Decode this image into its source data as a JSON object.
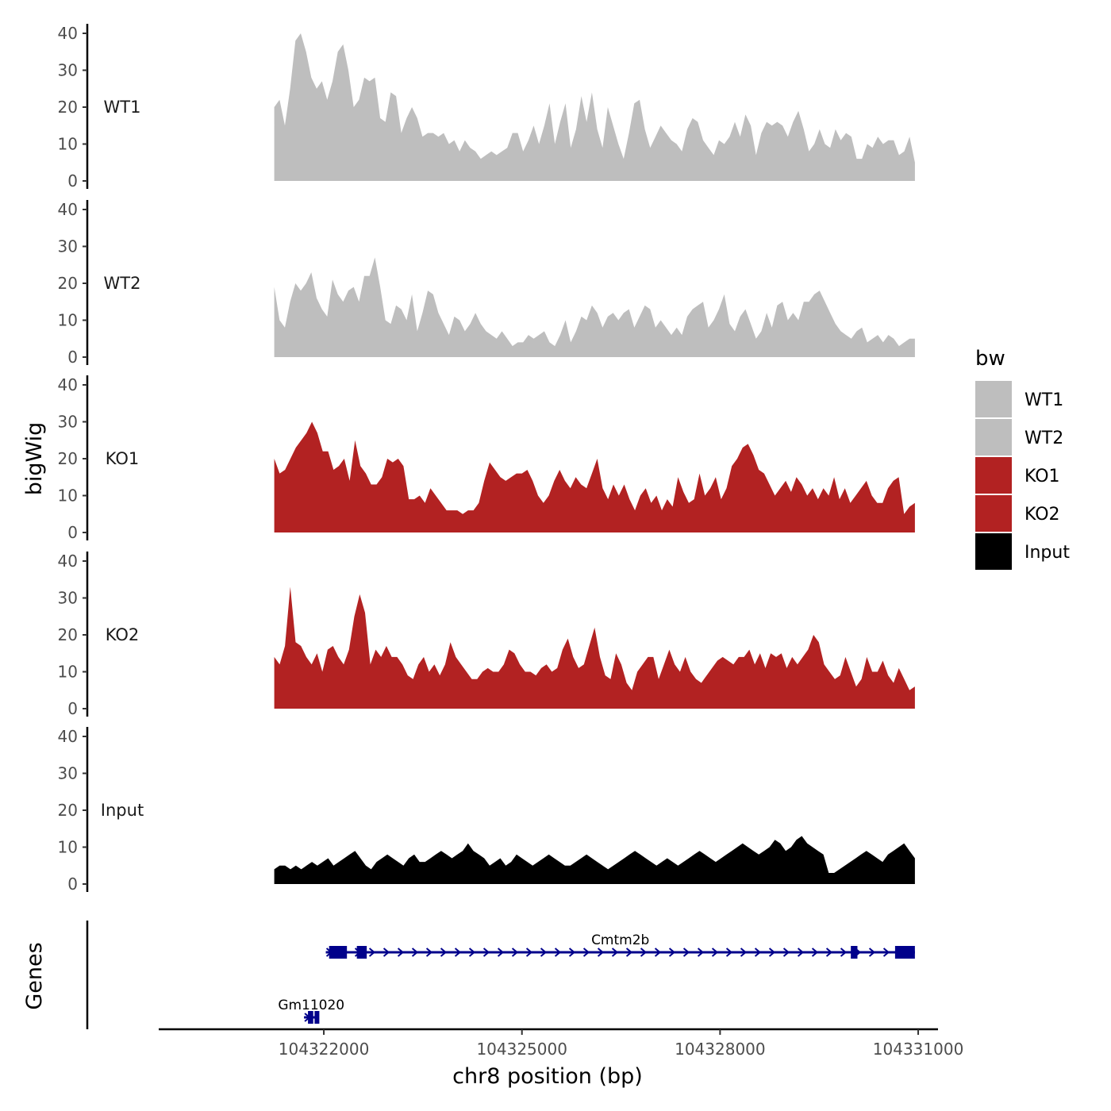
{
  "chart_data": {
    "type": "area",
    "ylabel": "bigWig",
    "xlabel": "chr8 position (bp)",
    "genes_label": "Genes",
    "ylim": [
      0,
      40
    ],
    "yticks": [
      0,
      10,
      20,
      30,
      40
    ],
    "xlim": [
      104319500,
      104331300
    ],
    "x_start": 104321250,
    "x_end": 104330950,
    "xticks": [
      {
        "value": 104322000,
        "label": "104322000"
      },
      {
        "value": 104325000,
        "label": "104325000"
      },
      {
        "value": 104328000,
        "label": "104328000"
      },
      {
        "value": 104331000,
        "label": "104331000"
      }
    ],
    "legend": {
      "title": "bw",
      "entries": [
        {
          "label": "WT1",
          "color": "#bebebe"
        },
        {
          "label": "WT2",
          "color": "#bebebe"
        },
        {
          "label": "KO1",
          "color": "#b22222"
        },
        {
          "label": "KO2",
          "color": "#b22222"
        },
        {
          "label": "Input",
          "color": "#000000"
        }
      ]
    },
    "tracks": [
      {
        "name": "WT1",
        "color": "#bebebe",
        "values": [
          20,
          22,
          15,
          25,
          38,
          40,
          35,
          28,
          25,
          27,
          22,
          27,
          35,
          37,
          30,
          20,
          22,
          28,
          27,
          28,
          17,
          16,
          24,
          23,
          13,
          17,
          20,
          17,
          12,
          13,
          13,
          12,
          13,
          10,
          11,
          8,
          11,
          9,
          8,
          6,
          7,
          8,
          7,
          8,
          9,
          13,
          13,
          8,
          11,
          15,
          10,
          15,
          21,
          10,
          16,
          21,
          9,
          14,
          23,
          16,
          24,
          14,
          9,
          20,
          15,
          10,
          6,
          13,
          21,
          22,
          14,
          9,
          12,
          15,
          13,
          11,
          10,
          8,
          14,
          17,
          16,
          11,
          9,
          7,
          11,
          10,
          12,
          16,
          12,
          18,
          15,
          7,
          13,
          16,
          15,
          16,
          15,
          12,
          16,
          19,
          14,
          8,
          10,
          14,
          10,
          9,
          14,
          11,
          13,
          12,
          6,
          6,
          10,
          9,
          12,
          10,
          11,
          11,
          7,
          8,
          12,
          5
        ]
      },
      {
        "name": "WT2",
        "color": "#bebebe",
        "values": [
          19,
          10,
          8,
          15,
          20,
          18,
          20,
          23,
          16,
          13,
          11,
          21,
          17,
          15,
          18,
          19,
          15,
          22,
          22,
          27,
          19,
          10,
          9,
          14,
          13,
          10,
          17,
          7,
          12,
          18,
          17,
          12,
          9,
          6,
          11,
          10,
          7,
          9,
          12,
          9,
          7,
          6,
          5,
          7,
          5,
          3,
          4,
          4,
          6,
          5,
          6,
          7,
          4,
          3,
          6,
          10,
          4,
          7,
          11,
          10,
          14,
          12,
          8,
          11,
          12,
          10,
          12,
          13,
          8,
          11,
          14,
          13,
          8,
          10,
          8,
          6,
          8,
          6,
          11,
          13,
          14,
          15,
          8,
          10,
          13,
          17,
          9,
          7,
          11,
          13,
          9,
          5,
          7,
          12,
          8,
          14,
          15,
          10,
          12,
          10,
          15,
          15,
          17,
          18,
          15,
          12,
          9,
          7,
          6,
          5,
          7,
          8,
          4,
          5,
          6,
          4,
          6,
          5,
          3,
          4,
          5,
          5
        ]
      },
      {
        "name": "KO1",
        "color": "#b22222",
        "values": [
          20,
          16,
          17,
          20,
          23,
          25,
          27,
          30,
          27,
          22,
          22,
          17,
          18,
          20,
          14,
          25,
          18,
          16,
          13,
          13,
          15,
          20,
          19,
          20,
          18,
          9,
          9,
          10,
          8,
          12,
          10,
          8,
          6,
          6,
          6,
          5,
          6,
          6,
          8,
          14,
          19,
          17,
          15,
          14,
          15,
          16,
          16,
          17,
          14,
          10,
          8,
          10,
          14,
          17,
          14,
          12,
          15,
          13,
          12,
          16,
          20,
          12,
          9,
          13,
          10,
          13,
          9,
          6,
          10,
          12,
          8,
          10,
          6,
          9,
          7,
          15,
          11,
          8,
          9,
          16,
          10,
          12,
          15,
          9,
          12,
          18,
          20,
          23,
          24,
          21,
          17,
          16,
          13,
          10,
          12,
          14,
          11,
          15,
          13,
          10,
          12,
          9,
          12,
          10,
          15,
          9,
          12,
          8,
          10,
          12,
          14,
          10,
          8,
          8,
          12,
          14,
          15,
          5,
          7,
          8
        ]
      },
      {
        "name": "KO2",
        "color": "#b22222",
        "values": [
          14,
          12,
          17,
          33,
          18,
          17,
          14,
          12,
          15,
          10,
          16,
          17,
          14,
          12,
          16,
          25,
          31,
          26,
          12,
          16,
          14,
          17,
          14,
          14,
          12,
          9,
          8,
          12,
          14,
          10,
          12,
          9,
          12,
          18,
          14,
          12,
          10,
          8,
          8,
          10,
          11,
          10,
          10,
          12,
          16,
          15,
          12,
          10,
          10,
          9,
          11,
          12,
          10,
          11,
          16,
          19,
          14,
          11,
          12,
          17,
          22,
          14,
          9,
          8,
          15,
          12,
          7,
          5,
          10,
          12,
          14,
          14,
          8,
          12,
          16,
          12,
          10,
          14,
          10,
          8,
          7,
          9,
          11,
          13,
          14,
          13,
          12,
          14,
          14,
          16,
          12,
          15,
          11,
          15,
          14,
          15,
          11,
          14,
          12,
          14,
          16,
          20,
          18,
          12,
          10,
          8,
          9,
          14,
          10,
          6,
          8,
          14,
          10,
          10,
          13,
          9,
          7,
          11,
          8,
          5,
          6
        ]
      },
      {
        "name": "Input",
        "color": "#000000",
        "values": [
          4,
          5,
          5,
          4,
          5,
          4,
          5,
          6,
          5,
          6,
          7,
          5,
          6,
          7,
          8,
          9,
          7,
          5,
          4,
          6,
          7,
          8,
          7,
          6,
          5,
          7,
          8,
          6,
          6,
          7,
          8,
          9,
          8,
          7,
          8,
          9,
          11,
          9,
          8,
          7,
          5,
          6,
          7,
          5,
          6,
          8,
          7,
          6,
          5,
          6,
          7,
          8,
          7,
          6,
          5,
          5,
          6,
          7,
          8,
          7,
          6,
          5,
          4,
          5,
          6,
          7,
          8,
          9,
          8,
          7,
          6,
          5,
          6,
          7,
          6,
          5,
          6,
          7,
          8,
          9,
          8,
          7,
          6,
          7,
          8,
          9,
          10,
          11,
          10,
          9,
          8,
          9,
          10,
          12,
          11,
          9,
          10,
          12,
          13,
          11,
          10,
          9,
          8,
          3,
          3,
          4,
          5,
          6,
          7,
          8,
          9,
          8,
          7,
          6,
          8,
          9,
          10,
          11,
          9,
          7
        ]
      }
    ],
    "genes": [
      {
        "name": "Gm11020",
        "start": 104321700,
        "end": 104321920,
        "strand": "+",
        "exons": [
          [
            104321760,
            104321840
          ],
          [
            104321860,
            104321900
          ]
        ]
      },
      {
        "name": "Cmtm2b",
        "start": 104322030,
        "end": 104330950,
        "strand": "+",
        "exons": [
          [
            104322080,
            104322350
          ],
          [
            104322500,
            104322650
          ],
          [
            104329980,
            104330080
          ],
          [
            104330650,
            104330950
          ]
        ]
      }
    ]
  }
}
